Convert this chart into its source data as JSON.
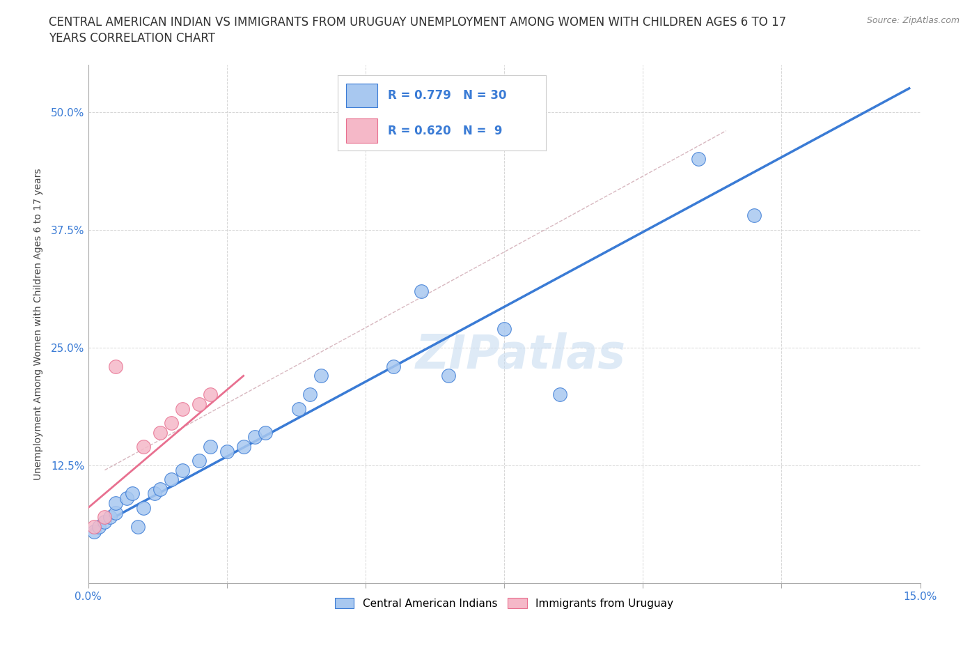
{
  "title_line1": "CENTRAL AMERICAN INDIAN VS IMMIGRANTS FROM URUGUAY UNEMPLOYMENT AMONG WOMEN WITH CHILDREN AGES 6 TO 17",
  "title_line2": "YEARS CORRELATION CHART",
  "source": "Source: ZipAtlas.com",
  "ylabel": "Unemployment Among Women with Children Ages 6 to 17 years",
  "xlim": [
    0.0,
    0.15
  ],
  "ylim": [
    0.0,
    0.55
  ],
  "yticks": [
    0.0,
    0.125,
    0.25,
    0.375,
    0.5
  ],
  "ytick_labels": [
    "",
    "12.5%",
    "25.0%",
    "37.5%",
    "50.0%"
  ],
  "xticks": [
    0.0,
    0.025,
    0.05,
    0.075,
    0.1,
    0.125,
    0.15
  ],
  "xtick_labels": [
    "0.0%",
    "",
    "",
    "",
    "",
    "",
    "15.0%"
  ],
  "blue_R": 0.779,
  "blue_N": 30,
  "pink_R": 0.62,
  "pink_N": 9,
  "blue_scatter_x": [
    0.001,
    0.002,
    0.003,
    0.004,
    0.005,
    0.005,
    0.007,
    0.008,
    0.009,
    0.01,
    0.012,
    0.013,
    0.015,
    0.017,
    0.02,
    0.022,
    0.025,
    0.028,
    0.03,
    0.032,
    0.038,
    0.04,
    0.042,
    0.055,
    0.06,
    0.065,
    0.075,
    0.085,
    0.11,
    0.12
  ],
  "blue_scatter_y": [
    0.055,
    0.06,
    0.065,
    0.07,
    0.075,
    0.085,
    0.09,
    0.095,
    0.06,
    0.08,
    0.095,
    0.1,
    0.11,
    0.12,
    0.13,
    0.145,
    0.14,
    0.145,
    0.155,
    0.16,
    0.185,
    0.2,
    0.22,
    0.23,
    0.31,
    0.22,
    0.27,
    0.2,
    0.45,
    0.39
  ],
  "pink_scatter_x": [
    0.001,
    0.003,
    0.005,
    0.01,
    0.013,
    0.015,
    0.017,
    0.02,
    0.022
  ],
  "pink_scatter_y": [
    0.06,
    0.07,
    0.23,
    0.145,
    0.16,
    0.17,
    0.185,
    0.19,
    0.2
  ],
  "blue_line_x": [
    0.0,
    0.148
  ],
  "blue_line_y": [
    0.055,
    0.525
  ],
  "pink_line_x": [
    0.0,
    0.028
  ],
  "pink_line_y": [
    0.08,
    0.22
  ],
  "diag_line_x": [
    0.003,
    0.115
  ],
  "diag_line_y": [
    0.12,
    0.48
  ],
  "blue_color": "#A8C8F0",
  "pink_color": "#F5B8C8",
  "blue_line_color": "#3A7BD5",
  "pink_line_color": "#E87090",
  "diag_line_color": "#D8B8C0",
  "watermark": "ZIPatlas",
  "legend_blue_label": "Central American Indians",
  "legend_pink_label": "Immigrants from Uruguay",
  "title_fontsize": 12,
  "label_fontsize": 10,
  "tick_fontsize": 11,
  "scatter_size": 200,
  "background_color": "#FFFFFF"
}
